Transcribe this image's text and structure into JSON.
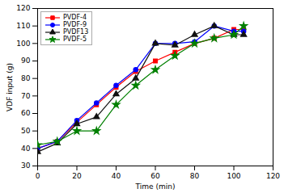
{
  "chart_data": {
    "type": "line",
    "xlabel": "Time (min)",
    "ylabel": "VDF input (g)",
    "x": [
      0,
      10,
      20,
      30,
      40,
      50,
      60,
      70,
      80,
      90,
      100,
      105
    ],
    "series": [
      {
        "name": "PVDF-4",
        "color": "#ff0000",
        "marker": "square",
        "values": [
          40,
          44,
          55,
          65,
          75,
          84,
          90,
          95,
          100,
          103,
          108,
          108
        ]
      },
      {
        "name": "PVDF-9",
        "color": "#0000ff",
        "marker": "circle",
        "values": [
          40,
          44,
          56,
          66,
          76,
          85,
          100,
          100,
          101,
          110,
          107,
          107
        ]
      },
      {
        "name": "PVDF13",
        "color": "#111111",
        "marker": "triangle",
        "values": [
          38,
          43,
          54,
          58,
          71,
          80,
          100,
          99,
          105,
          110,
          105,
          105
        ]
      },
      {
        "name": "PVDF-5",
        "color": "#008000",
        "marker": "star",
        "values": [
          42,
          44,
          50,
          50,
          65,
          76,
          85,
          93,
          100,
          103,
          105,
          110
        ]
      }
    ],
    "xlim": [
      0,
      120
    ],
    "ylim": [
      30,
      120
    ],
    "xticks": [
      0,
      20,
      40,
      60,
      80,
      100,
      120
    ],
    "yticks": [
      30,
      40,
      50,
      60,
      70,
      80,
      90,
      100,
      110,
      120
    ],
    "legend": "upper left",
    "grid": false
  }
}
